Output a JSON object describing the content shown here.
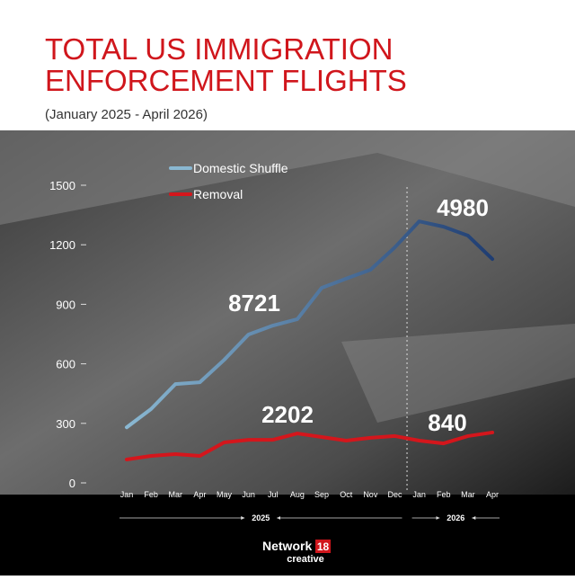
{
  "title_lines": [
    "TOTAL US IMMIGRATION",
    "ENFORCEMENT FLIGHTS"
  ],
  "subtitle": "(January 2025 - April 2026)",
  "chart_data": {
    "type": "line",
    "categories": [
      "Jan",
      "Feb",
      "Mar",
      "Apr",
      "May",
      "Jun",
      "Jul",
      "Aug",
      "Sep",
      "Oct",
      "Nov",
      "Dec",
      "Jan",
      "Feb",
      "Mar",
      "Apr"
    ],
    "year_labels": [
      "2025",
      "2026"
    ],
    "series": [
      {
        "name": "Domestic Shuffle",
        "color": "#8ab8d2",
        "gradient_to": "#1f3d72",
        "values": [
          280,
          372,
          498,
          507,
          620,
          748,
          793,
          825,
          983,
          1029,
          1074,
          1187,
          1318,
          1291,
          1246,
          1128
        ]
      },
      {
        "name": "Removal",
        "color": "#d4161c",
        "values": [
          118,
          136,
          145,
          136,
          204,
          217,
          217,
          249,
          231,
          213,
          227,
          236,
          213,
          199,
          236,
          254
        ]
      }
    ],
    "annotations": [
      "8721",
      "4980",
      "2202",
      "840"
    ],
    "ylim": [
      0,
      1500
    ],
    "yticks": [
      0,
      300,
      600,
      900,
      1200,
      1500
    ]
  },
  "brand": {
    "name": "Network",
    "number": "18",
    "tagline": "creative"
  }
}
